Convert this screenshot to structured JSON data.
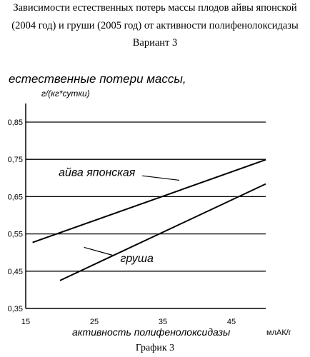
{
  "header": {
    "line1": "Зависимости естественных потерь массы плодов айвы японской",
    "line2": "(2004 год)  и груши   (2005 год)  от активности полифенолоксидазы",
    "line3": "Вариант 3"
  },
  "caption": "График 3",
  "chart_data": {
    "type": "line",
    "ylabel": "естественные потери массы,",
    "yunit": "г/(кг*сутки)",
    "xlabel": "активность полифенолоксидазы",
    "xunit": "млАК/г",
    "xlim": [
      15,
      50
    ],
    "ylim": [
      0.35,
      0.9
    ],
    "yticks": [
      "0,85",
      "0,75",
      "0,65",
      "0,55",
      "0,45",
      "0,35"
    ],
    "ytick_values": [
      0.85,
      0.75,
      0.65,
      0.55,
      0.45,
      0.35
    ],
    "xticks": [
      "15",
      "25",
      "35",
      "45"
    ],
    "xtick_values": [
      15,
      25,
      35,
      45
    ],
    "grid": "horizontal",
    "series": [
      {
        "name": "айва японская",
        "x": [
          16,
          50
        ],
        "y": [
          0.527,
          0.749
        ]
      },
      {
        "name": "груша",
        "x": [
          20,
          50
        ],
        "y": [
          0.425,
          0.684
        ]
      }
    ]
  }
}
